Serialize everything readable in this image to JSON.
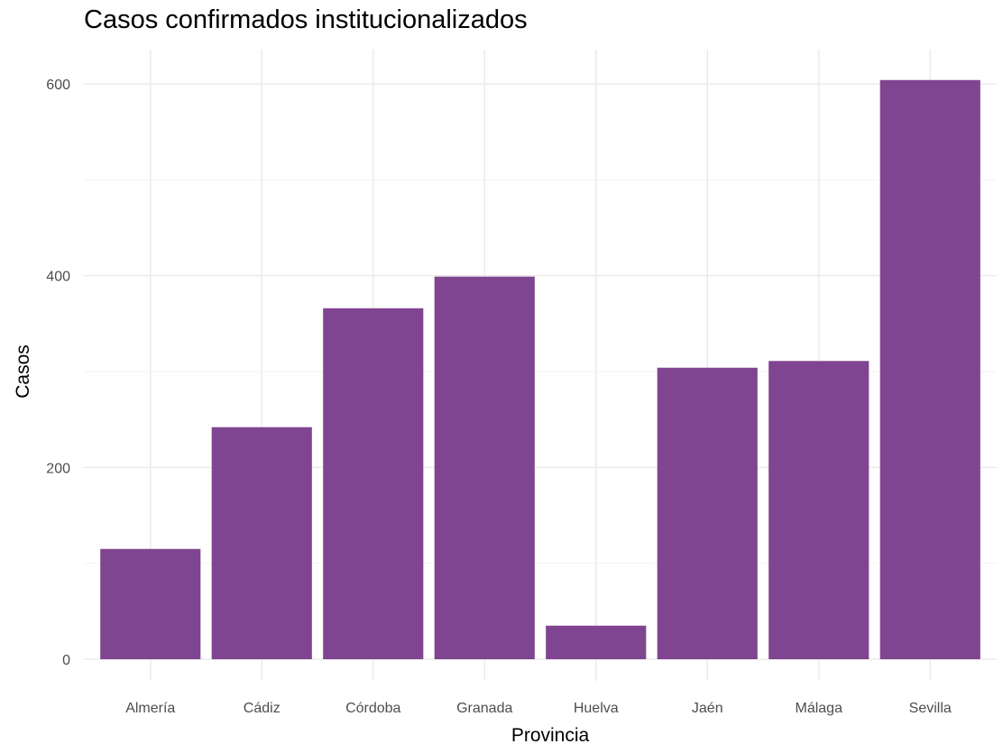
{
  "chart_data": {
    "type": "bar",
    "title": "Casos confirmados institucionalizados",
    "xlabel": "Provincia",
    "ylabel": "Casos",
    "categories": [
      "Almería",
      "Cádiz",
      "Córdoba",
      "Granada",
      "Huelva",
      "Jaén",
      "Málaga",
      "Sevilla"
    ],
    "values": [
      115,
      242,
      366,
      399,
      35,
      304,
      311,
      604
    ],
    "ylim": [
      0,
      630
    ],
    "yticks": [
      0,
      200,
      400,
      600
    ],
    "grid": true,
    "legend": "none",
    "bar_color": "#804590"
  }
}
